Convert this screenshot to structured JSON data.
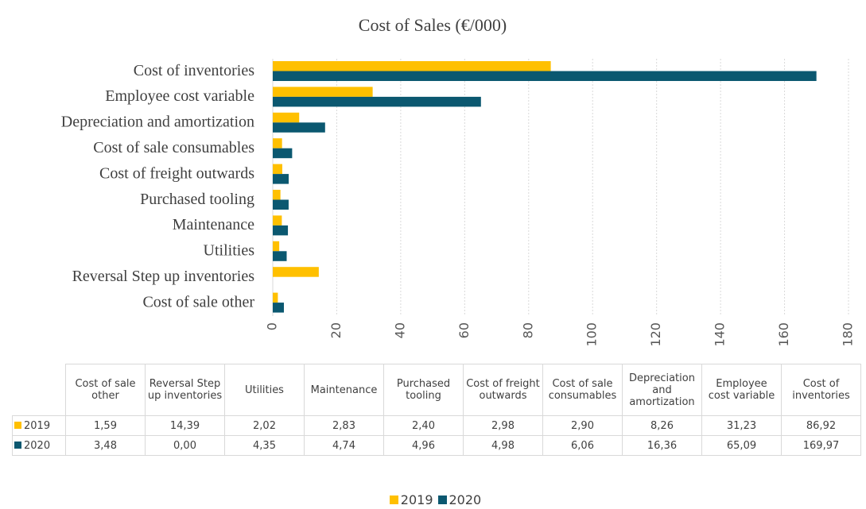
{
  "chart_data": {
    "type": "bar",
    "orientation": "horizontal",
    "title": "Cost of Sales (€/000)",
    "categories": [
      "Cost of sale other",
      "Reversal Step up inventories",
      "Utilities",
      "Maintenance",
      "Purchased tooling",
      "Cost of freight outwards",
      "Cost of sale consumables",
      "Depreciation and amortization",
      "Employee cost variable",
      "Cost of inventories"
    ],
    "series": [
      {
        "name": "2019",
        "color": "#ffc000",
        "values": [
          1.59,
          14.39,
          2.02,
          2.83,
          2.4,
          2.98,
          2.9,
          8.26,
          31.23,
          86.92
        ],
        "value_labels": [
          "1,59",
          "14,39",
          "2,02",
          "2,83",
          "2,40",
          "2,98",
          "2,90",
          "8,26",
          "31,23",
          "86,92"
        ]
      },
      {
        "name": "2020",
        "color": "#0b5870",
        "values": [
          3.48,
          0.0,
          4.35,
          4.74,
          4.96,
          4.98,
          6.06,
          16.36,
          65.09,
          169.97
        ],
        "value_labels": [
          "3,48",
          "0,00",
          "4,35",
          "4,74",
          "4,96",
          "4,98",
          "6,06",
          "16,36",
          "65,09",
          "169,97"
        ]
      }
    ],
    "xlim": [
      0,
      180
    ],
    "xticks": [
      0,
      20,
      40,
      60,
      80,
      100,
      120,
      140,
      160,
      180
    ],
    "grid": true,
    "legend": "bottom"
  }
}
